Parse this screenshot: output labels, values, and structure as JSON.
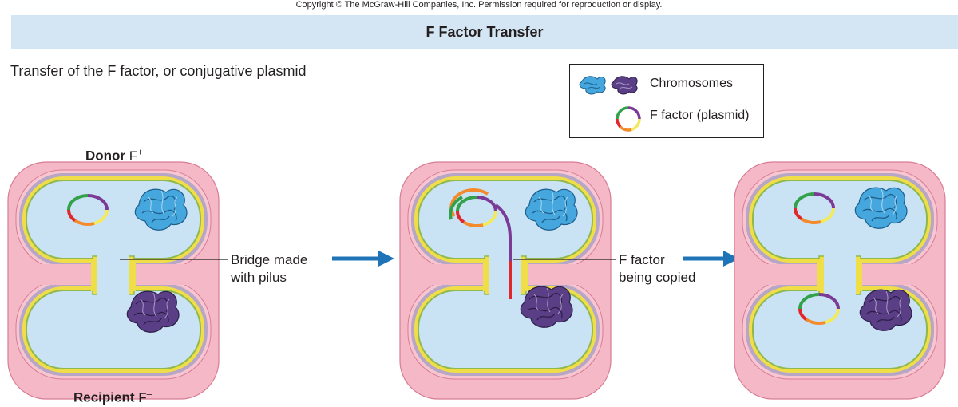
{
  "copyright": "Copyright © The McGraw-Hill Companies, Inc. Permission required for reproduction or display.",
  "title": "F Factor Transfer",
  "subtitle": "Transfer of the F factor, or conjugative plasmid",
  "legend": {
    "chromosomes": "Chromosomes",
    "f_factor": "F factor (plasmid)"
  },
  "labels": {
    "donor_bold": "Donor",
    "donor_type": "F+",
    "recipient_bold": "Recipient",
    "recipient_type": "F–",
    "bridge_line1": "Bridge made",
    "bridge_line2": "with pilus",
    "copy_line1": "F factor",
    "copy_line2": "being copied"
  },
  "colors": {
    "membrane_pink": "#f5b8c6",
    "membrane_shadow": "#e48aa2",
    "wall_yellow": "#f0de49",
    "periplasm_purple": "#b7a6c6",
    "cytoplasm_blue": "#c9e3f4",
    "chromosome_blue": "#45a7dd",
    "chromosome_purple": "#5a3f86",
    "arrow_blue": "#1f74b7",
    "plasmid_green": "#33a14a",
    "plasmid_orange": "#f58a2c",
    "plasmid_yellow": "#f2ea5a",
    "plasmid_purple": "#7b3a96",
    "plasmid_red": "#e0282b",
    "title_bar": "#d4e6f3"
  }
}
